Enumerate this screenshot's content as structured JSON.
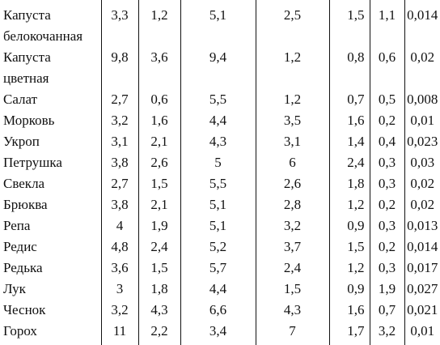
{
  "rows": [
    {
      "name": [
        "Капуста",
        "белокочанная"
      ],
      "values": [
        "3,3",
        "1,2",
        "5,1",
        "2,5",
        "1,5",
        "1,1",
        "0,014"
      ]
    },
    {
      "name": [
        "Капуста",
        "цветная"
      ],
      "values": [
        "9,8",
        "3,6",
        "9,4",
        "1,2",
        "0,8",
        "0,6",
        "0,02"
      ]
    },
    {
      "name": [
        "Салат"
      ],
      "values": [
        "2,7",
        "0,6",
        "5,5",
        "1,2",
        "0,7",
        "0,5",
        "0,008"
      ]
    },
    {
      "name": [
        "Морковь"
      ],
      "values": [
        "3,2",
        "1,6",
        "4,4",
        "3,5",
        "1,6",
        "0,2",
        "0,01"
      ]
    },
    {
      "name": [
        "Укроп"
      ],
      "values": [
        "3,1",
        "2,1",
        "4,3",
        "3,1",
        "1,4",
        "0,4",
        "0,023"
      ]
    },
    {
      "name": [
        "Петрушка"
      ],
      "values": [
        "3,8",
        "2,6",
        "5",
        "6",
        "2,4",
        "0,3",
        "0,03"
      ]
    },
    {
      "name": [
        "Свекла"
      ],
      "values": [
        "2,7",
        "1,5",
        "5,5",
        "2,6",
        "1,8",
        "0,3",
        "0,02"
      ]
    },
    {
      "name": [
        "Брюква"
      ],
      "values": [
        "3,8",
        "2,1",
        "5,1",
        "2,8",
        "1,2",
        "0,2",
        "0,02"
      ]
    },
    {
      "name": [
        "Репа"
      ],
      "values": [
        "4",
        "1,9",
        "5,1",
        "3,2",
        "0,9",
        "0,3",
        "0,013"
      ]
    },
    {
      "name": [
        "Редис"
      ],
      "values": [
        "4,8",
        "2,4",
        "5,2",
        "3,7",
        "1,5",
        "0,2",
        "0,014"
      ]
    },
    {
      "name": [
        "Редька"
      ],
      "values": [
        "3,6",
        "1,5",
        "5,7",
        "2,4",
        "1,2",
        "0,3",
        "0,017"
      ]
    },
    {
      "name": [
        "Лук"
      ],
      "values": [
        "3",
        "1,8",
        "4,4",
        "1,5",
        "0,9",
        "1,9",
        "0,027"
      ]
    },
    {
      "name": [
        "Чеснок"
      ],
      "values": [
        "3,2",
        "4,3",
        "6,6",
        "4,3",
        "1,6",
        "0,7",
        "0,021"
      ]
    },
    {
      "name": [
        "Горох"
      ],
      "values": [
        "11",
        "2,2",
        "3,4",
        "7",
        "1,7",
        "3,2",
        "0,01"
      ]
    }
  ]
}
